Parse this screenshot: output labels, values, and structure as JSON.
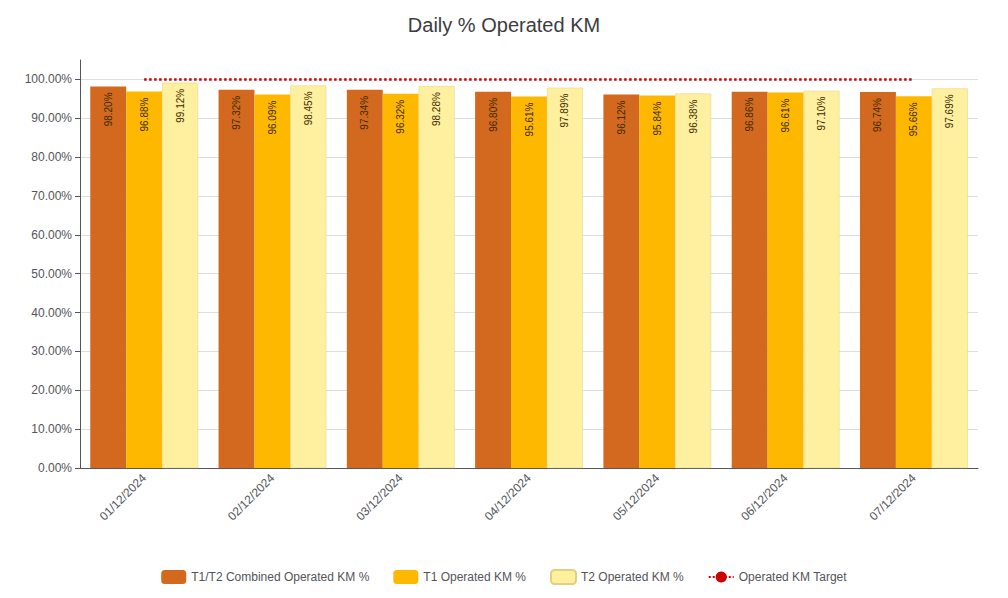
{
  "chart_data": {
    "type": "bar",
    "title": "Daily % Operated KM",
    "categories": [
      "01/12/2024",
      "02/12/2024",
      "03/12/2024",
      "04/12/2024",
      "05/12/2024",
      "06/12/2024",
      "07/12/2024"
    ],
    "series": [
      {
        "name": "T1/T2 Combined Operated KM %",
        "color": "#D2691E",
        "values": [
          98.2,
          97.32,
          97.34,
          96.8,
          96.12,
          96.86,
          96.74
        ],
        "value_labels": [
          "98.20%",
          "97.32%",
          "97.34%",
          "96.80%",
          "96.12%",
          "96.86%",
          "96.74%"
        ]
      },
      {
        "name": "T1 Operated KM %",
        "color": "#FFB800",
        "values": [
          96.88,
          96.09,
          96.32,
          95.61,
          95.84,
          96.61,
          95.66
        ],
        "value_labels": [
          "96.88%",
          "96.09%",
          "96.32%",
          "95.61%",
          "95.84%",
          "96.61%",
          "95.66%"
        ]
      },
      {
        "name": "T2 Operated KM %",
        "color": "#FFF0A0",
        "values": [
          99.12,
          98.45,
          98.28,
          97.89,
          96.38,
          97.1,
          97.69
        ],
        "value_labels": [
          "99.12%",
          "98.45%",
          "98.28%",
          "97.89%",
          "96.38%",
          "97.10%",
          "97.69%"
        ]
      },
      {
        "name": "Operated KM Target",
        "type": "line",
        "color": "#CC0000",
        "line_style": "dotted",
        "values": [
          100.0,
          100.0,
          100.0,
          100.0,
          100.0,
          100.0,
          100.0
        ]
      }
    ],
    "ylim": [
      0,
      105
    ],
    "yticks": [
      {
        "value": 0,
        "label": "0.00%"
      },
      {
        "value": 10,
        "label": "10.00%"
      },
      {
        "value": 20,
        "label": "20.00%"
      },
      {
        "value": 30,
        "label": "30.00%"
      },
      {
        "value": 40,
        "label": "40.00%"
      },
      {
        "value": 50,
        "label": "50.00%"
      },
      {
        "value": 60,
        "label": "60.00%"
      },
      {
        "value": 70,
        "label": "70.00%"
      },
      {
        "value": 80,
        "label": "80.00%"
      },
      {
        "value": 90,
        "label": "90.00%"
      },
      {
        "value": 100,
        "label": "100.00%"
      }
    ],
    "grid": true,
    "legend": "bottom",
    "data_labels": true
  }
}
